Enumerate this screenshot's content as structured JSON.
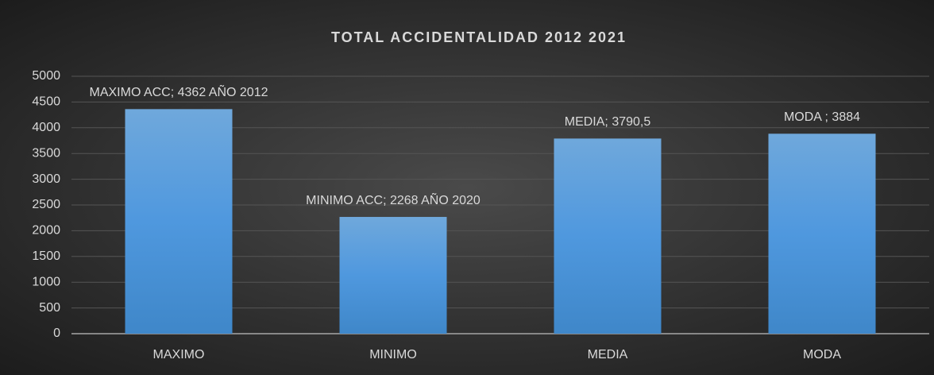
{
  "chart_data": {
    "type": "bar",
    "title": "TOTAL ACCIDENTALIDAD 2012 2021",
    "categories": [
      "MAXIMO",
      "MINIMO",
      "MEDIA",
      "MODA"
    ],
    "values": [
      4362,
      2268,
      3790.5,
      3884
    ],
    "value_labels": [
      "MAXIMO ACC; 4362 AÑO 2012",
      "MINIMO ACC; 2268 AÑO 2020",
      "MEDIA; 3790,5",
      "MODA ; 3884"
    ],
    "color": "#5b9bd5",
    "ylim": [
      0,
      5000
    ],
    "yticks": [
      0,
      500,
      1000,
      1500,
      2000,
      2500,
      3000,
      3500,
      4000,
      4500,
      5000
    ],
    "grid": true
  }
}
